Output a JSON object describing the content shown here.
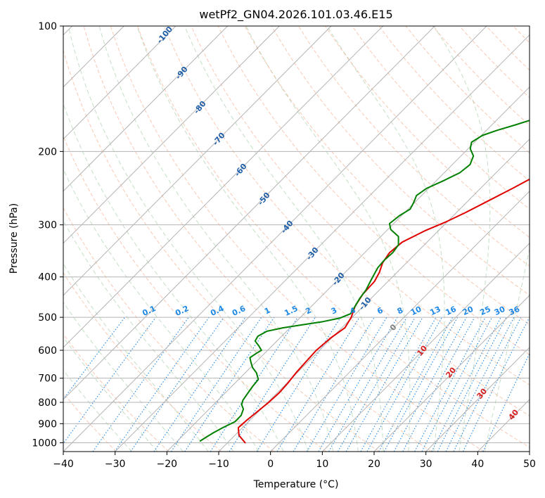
{
  "chart_data": {
    "type": "line",
    "title": "wetPf2_GN04.2026.101.03.46.E15",
    "xlabel": "Temperature (°C)",
    "ylabel": "Pressure (hPa)",
    "xlim": [
      -40,
      50
    ],
    "ylim": [
      1050,
      100
    ],
    "y_scale": "log",
    "x_ticks": [
      {
        "value": -40,
        "label": "−40"
      },
      {
        "value": -30,
        "label": "−30"
      },
      {
        "value": -20,
        "label": "−20"
      },
      {
        "value": -10,
        "label": "−10"
      },
      {
        "value": 0,
        "label": "0"
      },
      {
        "value": 10,
        "label": "10"
      },
      {
        "value": 20,
        "label": "20"
      },
      {
        "value": 30,
        "label": "30"
      },
      {
        "value": 40,
        "label": "40"
      },
      {
        "value": 50,
        "label": "50"
      }
    ],
    "y_ticks": [
      {
        "value": 100,
        "label": "100"
      },
      {
        "value": 200,
        "label": "200"
      },
      {
        "value": 300,
        "label": "300"
      },
      {
        "value": 400,
        "label": "400"
      },
      {
        "value": 500,
        "label": "500"
      },
      {
        "value": 600,
        "label": "600"
      },
      {
        "value": 700,
        "label": "700"
      },
      {
        "value": 800,
        "label": "800"
      },
      {
        "value": 900,
        "label": "900"
      },
      {
        "value": 1000,
        "label": "1000"
      }
    ],
    "series": [
      {
        "name": "temperature",
        "color": "#e00000",
        "points": [
          [
            -6.6,
            1000
          ],
          [
            -9.2,
            960
          ],
          [
            -10.8,
            920
          ],
          [
            -10.6,
            880
          ],
          [
            -10.2,
            840
          ],
          [
            -9.8,
            800
          ],
          [
            -9.6,
            760
          ],
          [
            -9.8,
            720
          ],
          [
            -10.2,
            680
          ],
          [
            -10.4,
            640
          ],
          [
            -10.6,
            600
          ],
          [
            -10.2,
            560
          ],
          [
            -9.4,
            530
          ],
          [
            -10.2,
            500
          ],
          [
            -11.6,
            470
          ],
          [
            -12.4,
            440
          ],
          [
            -12.6,
            410
          ],
          [
            -13.4,
            390
          ],
          [
            -14.6,
            370
          ],
          [
            -15.2,
            350
          ],
          [
            -14.8,
            330
          ],
          [
            -12.6,
            310
          ],
          [
            -10.2,
            295
          ],
          [
            -8.2,
            280
          ],
          [
            -6.4,
            265
          ],
          [
            -3.8,
            245
          ],
          [
            -1.2,
            225
          ],
          [
            2.2,
            205
          ],
          [
            4.6,
            192
          ],
          [
            6.6,
            180
          ],
          [
            8.4,
            168
          ],
          [
            10.4,
            157
          ],
          [
            12.6,
            146
          ],
          [
            14.6,
            137
          ],
          [
            16.6,
            128
          ],
          [
            18.6,
            120
          ],
          [
            20.6,
            113
          ],
          [
            21.8,
            109
          ],
          [
            22.8,
            105
          ],
          [
            23.6,
            100
          ]
        ]
      },
      {
        "name": "dewpoint",
        "color": "#008000",
        "points": [
          [
            -15.6,
            990
          ],
          [
            -15.2,
            970
          ],
          [
            -14.6,
            945
          ],
          [
            -13.8,
            920
          ],
          [
            -12.6,
            890
          ],
          [
            -12.6,
            860
          ],
          [
            -13.4,
            830
          ],
          [
            -14.6,
            810
          ],
          [
            -15.2,
            790
          ],
          [
            -15.6,
            760
          ],
          [
            -16.0,
            730
          ],
          [
            -16.2,
            705
          ],
          [
            -17.8,
            680
          ],
          [
            -19.6,
            660
          ],
          [
            -21.0,
            640
          ],
          [
            -22.0,
            625
          ],
          [
            -21.6,
            610
          ],
          [
            -21.2,
            600
          ],
          [
            -22.6,
            585
          ],
          [
            -24.2,
            570
          ],
          [
            -24.6,
            555
          ],
          [
            -23.8,
            540
          ],
          [
            -21.4,
            530
          ],
          [
            -18.2,
            521
          ],
          [
            -14.8,
            512
          ],
          [
            -12.2,
            502
          ],
          [
            -11.0,
            490
          ],
          [
            -11.6,
            470
          ],
          [
            -12.2,
            450
          ],
          [
            -12.6,
            430
          ],
          [
            -13.4,
            410
          ],
          [
            -14.0,
            395
          ],
          [
            -14.6,
            380
          ],
          [
            -14.8,
            365
          ],
          [
            -14.6,
            350
          ],
          [
            -15.0,
            335
          ],
          [
            -16.6,
            320
          ],
          [
            -19.4,
            308
          ],
          [
            -20.8,
            298
          ],
          [
            -20.4,
            285
          ],
          [
            -19.6,
            275
          ],
          [
            -20.2,
            265
          ],
          [
            -21.0,
            255
          ],
          [
            -20.4,
            245
          ],
          [
            -18.6,
            235
          ],
          [
            -17.0,
            225
          ],
          [
            -16.6,
            215
          ],
          [
            -17.6,
            205
          ],
          [
            -19.6,
            197
          ],
          [
            -20.6,
            190
          ],
          [
            -19.8,
            183
          ],
          [
            -18.0,
            178
          ],
          [
            -15.6,
            173
          ],
          [
            -13.4,
            168
          ],
          [
            -12.4,
            163
          ],
          [
            -12.4,
            157
          ],
          [
            -12.6,
            150
          ],
          [
            -12.4,
            144
          ],
          [
            -11.6,
            138
          ],
          [
            -10.6,
            132
          ],
          [
            -9.4,
            126
          ],
          [
            -8.4,
            121
          ],
          [
            -7.4,
            116
          ],
          [
            -6.2,
            111
          ],
          [
            -4.4,
            106
          ],
          [
            -1.4,
            100
          ]
        ]
      }
    ],
    "dry_adiabat_labels": [
      {
        "value": -100,
        "label": "-100"
      },
      {
        "value": -90,
        "label": "-90"
      },
      {
        "value": -80,
        "label": "-80"
      },
      {
        "value": -70,
        "label": "-70"
      },
      {
        "value": -60,
        "label": "-60"
      },
      {
        "value": -50,
        "label": "-50"
      },
      {
        "value": -40,
        "label": "-40"
      },
      {
        "value": -30,
        "label": "-30"
      },
      {
        "value": -20,
        "label": "-20"
      },
      {
        "value": -10,
        "label": "-10"
      },
      {
        "value": 0,
        "label": "0"
      },
      {
        "value": 10,
        "label": "10"
      },
      {
        "value": 20,
        "label": "20"
      },
      {
        "value": 30,
        "label": "30"
      },
      {
        "value": 40,
        "label": "40"
      }
    ],
    "mixing_ratio_labels": [
      {
        "value": 0.1,
        "label": "0.1"
      },
      {
        "value": 0.2,
        "label": "0.2"
      },
      {
        "value": 0.4,
        "label": "0.4"
      },
      {
        "value": 0.6,
        "label": "0.6"
      },
      {
        "value": 1,
        "label": "1"
      },
      {
        "value": 1.5,
        "label": "1.5"
      },
      {
        "value": 2,
        "label": "2"
      },
      {
        "value": 3,
        "label": "3"
      },
      {
        "value": 4,
        "label": "4"
      },
      {
        "value": 6,
        "label": "6"
      },
      {
        "value": 8,
        "label": "8"
      },
      {
        "value": 10,
        "label": "10"
      },
      {
        "value": 13,
        "label": "13"
      },
      {
        "value": 16,
        "label": "16"
      },
      {
        "value": 20,
        "label": "20"
      },
      {
        "value": 25,
        "label": "25"
      },
      {
        "value": 30,
        "label": "30"
      },
      {
        "value": 36,
        "label": "36"
      }
    ],
    "colors": {
      "dry_adiabat_cold": "#1f5fa8",
      "dry_adiabat_warm": "#d62020",
      "dry_adiabat_zero": "#808080",
      "mixing_ratio": "#1e88e5",
      "moist_adiabat": "#5aa05a",
      "isotherm": "#b4b4b4",
      "dry_adiabat_line": "#f4a582",
      "frame": "#000000"
    }
  }
}
